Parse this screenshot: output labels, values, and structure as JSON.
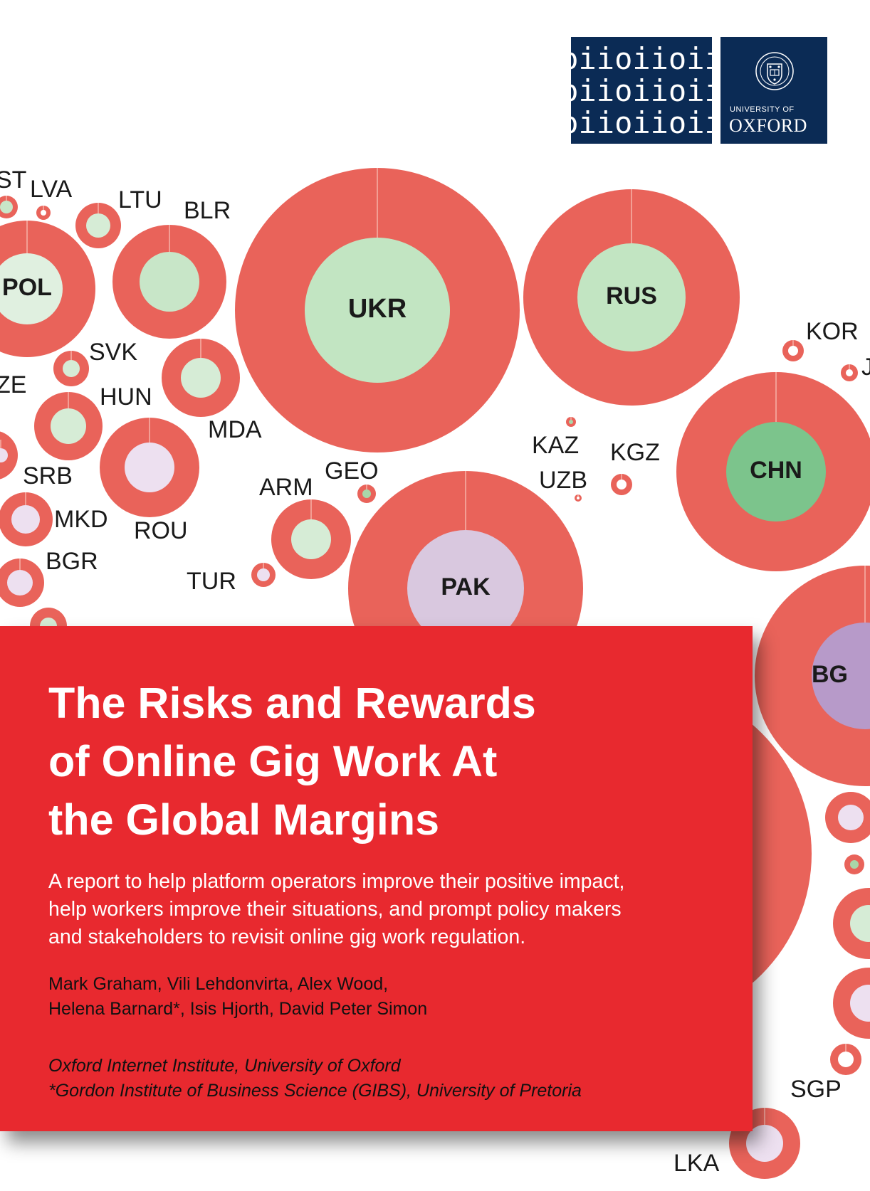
{
  "logo": {
    "lab_rows": [
      "oiioiioii",
      "oiioiioii",
      "oiioiioii"
    ],
    "university_of": "UNIVERSITY OF",
    "oxford": "OXFORD",
    "background_color": "#0b2b55"
  },
  "report": {
    "title_lines": [
      "The Risks and Rewards",
      "of Online Gig Work At",
      "the Global Margins"
    ],
    "subtitle_lines": [
      "A report to help platform operators improve their positive impact,",
      "help workers improve their situations, and prompt policy makers",
      "and stakeholders to revisit online gig work regulation."
    ],
    "author_lines": [
      "Mark Graham, Vili Lehdonvirta, Alex Wood,",
      "Helena Barnard*, Isis Hjorth, David Peter Simon"
    ],
    "affiliation_lines": [
      "Oxford Internet Institute, University of Oxford",
      "*Gordon Institute of Business Science (GIBS), University of Pretoria"
    ],
    "panel_color": "#e8292f"
  },
  "bubble_map": {
    "ring_color": "#e9635a",
    "countries": [
      {
        "code": "UKR",
        "inner": "#c2e5c2"
      },
      {
        "code": "RUS",
        "inner": "#c2e5c2"
      },
      {
        "code": "CHN",
        "inner": "#7cc48c"
      },
      {
        "code": "PAK",
        "inner": "#d9c8df"
      },
      {
        "code": "BG",
        "inner": "#b79ac9"
      },
      {
        "code": "POL",
        "inner": "#e0f0e0"
      },
      {
        "code": "BLR",
        "inner": "#c8e6c8"
      },
      {
        "code": "LTU",
        "inner": "#d6ecd6"
      },
      {
        "code": "LVA",
        "inner": "#ffffff"
      },
      {
        "code": "ST",
        "inner": "#c8e6c8"
      },
      {
        "code": "SVK",
        "inner": "#d6ecd6"
      },
      {
        "code": "HUN",
        "inner": "#d6ecd6"
      },
      {
        "code": "MDA",
        "inner": "#d6ecd6"
      },
      {
        "code": "ZE",
        "inner": "#eeeeee"
      },
      {
        "code": "ROU",
        "inner": "#ede0f0"
      },
      {
        "code": "SRB",
        "inner": "#ede0f0"
      },
      {
        "code": "MKD",
        "inner": "#ede0f0"
      },
      {
        "code": "BGR",
        "inner": "#ede0f0"
      },
      {
        "code": "ARM",
        "inner": "#d6ecd6"
      },
      {
        "code": "GEO",
        "inner": "#a9d6a9"
      },
      {
        "code": "TUR",
        "inner": "#ede0f0"
      },
      {
        "code": "KAZ",
        "inner": "#a9d6a9"
      },
      {
        "code": "UZB",
        "inner": "#ffffff"
      },
      {
        "code": "KGZ",
        "inner": "#ffffff"
      },
      {
        "code": "KOR",
        "inner": "#ffffff"
      },
      {
        "code": "J",
        "inner": "#ffffff"
      },
      {
        "code": "SGP",
        "inner": "#ffffff"
      },
      {
        "code": "LKA",
        "inner": "#ede0f0"
      }
    ]
  }
}
